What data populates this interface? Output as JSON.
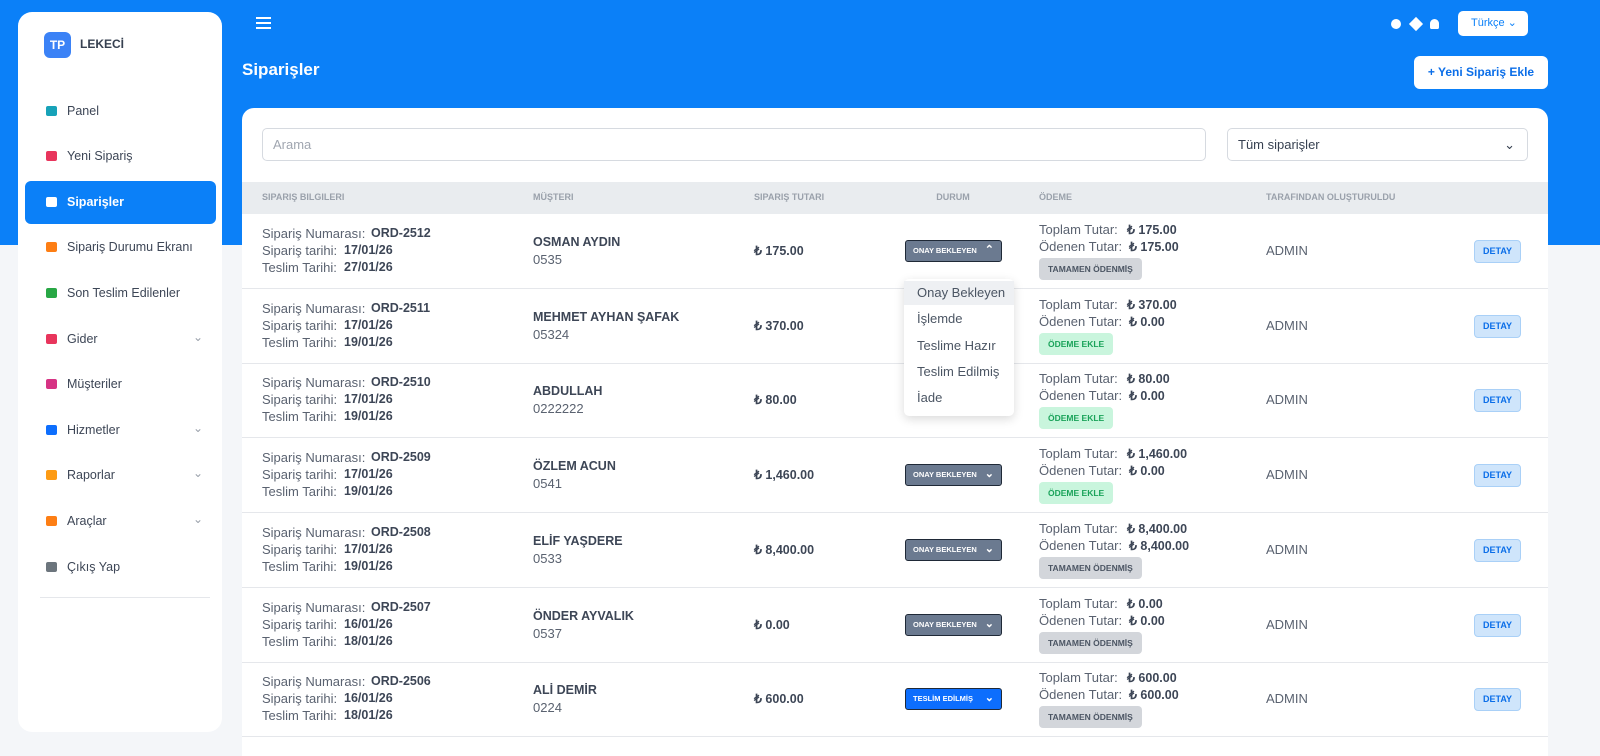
{
  "brand": {
    "logo": "TP",
    "name": "LEKECİ"
  },
  "sidebar": {
    "items": [
      {
        "label": "Panel",
        "icon_color": "#17a2b8"
      },
      {
        "label": "Yeni Sipariş",
        "icon_color": "#e8355c"
      },
      {
        "label": "Siparişler",
        "icon_color": "#ffffff",
        "active": true
      },
      {
        "label": "Sipariş Durumu Ekranı",
        "icon_color": "#fd7e14"
      },
      {
        "label": "Son Teslim Edilenler",
        "icon_color": "#28a745"
      },
      {
        "label": "Gider",
        "icon_color": "#e8355c",
        "submenu": true
      },
      {
        "label": "Müşteriler",
        "icon_color": "#d63384"
      },
      {
        "label": "Hizmetler",
        "icon_color": "#0d6efd",
        "submenu": true
      },
      {
        "label": "Raporlar",
        "icon_color": "#fd9b14",
        "submenu": true
      },
      {
        "label": "Araçlar",
        "icon_color": "#fd7e14",
        "submenu": true
      },
      {
        "label": "Çıkış Yap",
        "icon_color": "#6c757d"
      }
    ]
  },
  "header": {
    "title": "Siparişler",
    "language": "Türkçe",
    "new_order": "Yeni Sipariş Ekle"
  },
  "filters": {
    "search_placeholder": "Arama",
    "status_filter": "Tüm siparişler"
  },
  "labels": {
    "order_no": "Sipariş Numarası:",
    "order_date": "Sipariş tarihi:",
    "delivery_date": "Teslim Tarihi:",
    "total": "Toplam Tutar:",
    "paid": "Ödenen Tutar:"
  },
  "table": {
    "columns": [
      "SIPARIŞ BILGILERI",
      "MÜŞTERI",
      "SIPARIŞ TUTARI",
      "DURUM",
      "ÖDEME",
      "TARAFINDAN OLUŞTURULDU"
    ],
    "rows": [
      {
        "order_no": "ORD-2512",
        "order_date": "17/01/26",
        "delivery_date": "27/01/26",
        "customer": "OSMAN AYDIN",
        "phone": "0535",
        "amount": "₺ 175.00",
        "status": "ONAY BEKLEYEN",
        "status_color": "#6b7a90",
        "open": true,
        "total": "₺ 175.00",
        "paid": "₺ 175.00",
        "payment": "TAMAMEN ÖDENMİŞ",
        "payment_color": "#d3d6db",
        "created_by": "ADMIN",
        "action": "DETAY"
      },
      {
        "order_no": "ORD-2511",
        "order_date": "17/01/26",
        "delivery_date": "19/01/26",
        "customer": "MEHMET AYHAN ŞAFAK",
        "phone": "05324",
        "amount": "₺ 370.00",
        "total": "₺ 370.00",
        "paid": "₺ 0.00",
        "payment": "ÖDEME EKLE",
        "payment_color": "#c9f5dd",
        "created_by": "ADMIN",
        "action": "DETAY"
      },
      {
        "order_no": "ORD-2510",
        "order_date": "17/01/26",
        "delivery_date": "19/01/26",
        "customer": "ABDULLAH",
        "phone": "0222222",
        "amount": "₺ 80.00",
        "total": "₺ 80.00",
        "paid": "₺ 0.00",
        "payment": "ÖDEME EKLE",
        "payment_color": "#c9f5dd",
        "created_by": "ADMIN",
        "action": "DETAY"
      },
      {
        "order_no": "ORD-2509",
        "order_date": "17/01/26",
        "delivery_date": "19/01/26",
        "customer": "ÖZLEM ACUN",
        "phone": "0541",
        "amount": "₺ 1,460.00",
        "status": "ONAY BEKLEYEN",
        "status_color": "#6b7a90",
        "total": "₺ 1,460.00",
        "paid": "₺ 0.00",
        "payment": "ÖDEME EKLE",
        "payment_color": "#c9f5dd",
        "created_by": "ADMIN",
        "action": "DETAY"
      },
      {
        "order_no": "ORD-2508",
        "order_date": "17/01/26",
        "delivery_date": "19/01/26",
        "customer": "ELİF YAŞDERE",
        "phone": "0533",
        "amount": "₺ 8,400.00",
        "status": "ONAY BEKLEYEN",
        "status_color": "#6b7a90",
        "total": "₺ 8,400.00",
        "paid": "₺ 8,400.00",
        "payment": "TAMAMEN ÖDENMİŞ",
        "payment_color": "#d3d6db",
        "created_by": "ADMIN",
        "action": "DETAY"
      },
      {
        "order_no": "ORD-2507",
        "order_date": "16/01/26",
        "delivery_date": "18/01/26",
        "customer": "ÖNDER AYVALIK",
        "phone": "0537",
        "amount": "₺ 0.00",
        "status": "ONAY BEKLEYEN",
        "status_color": "#6b7a90",
        "total": "₺ 0.00",
        "paid": "₺ 0.00",
        "payment": "TAMAMEN ÖDENMİŞ",
        "payment_color": "#d3d6db",
        "created_by": "ADMIN",
        "action": "DETAY"
      },
      {
        "order_no": "ORD-2506",
        "order_date": "16/01/26",
        "delivery_date": "18/01/26",
        "customer": "ALİ DEMİR",
        "phone": "0224",
        "amount": "₺ 600.00",
        "status": "TESLİM EDİLMİŞ",
        "status_color": "#0d6efd",
        "total": "₺ 600.00",
        "paid": "₺ 600.00",
        "payment": "TAMAMEN ÖDENMİŞ",
        "payment_color": "#d3d6db",
        "created_by": "ADMIN",
        "action": "DETAY"
      }
    ]
  },
  "dropdown": {
    "options": [
      "Onay Bekleyen",
      "İşlemde",
      "Teslime Hazır",
      "Teslim Edilmiş",
      "İade"
    ]
  }
}
